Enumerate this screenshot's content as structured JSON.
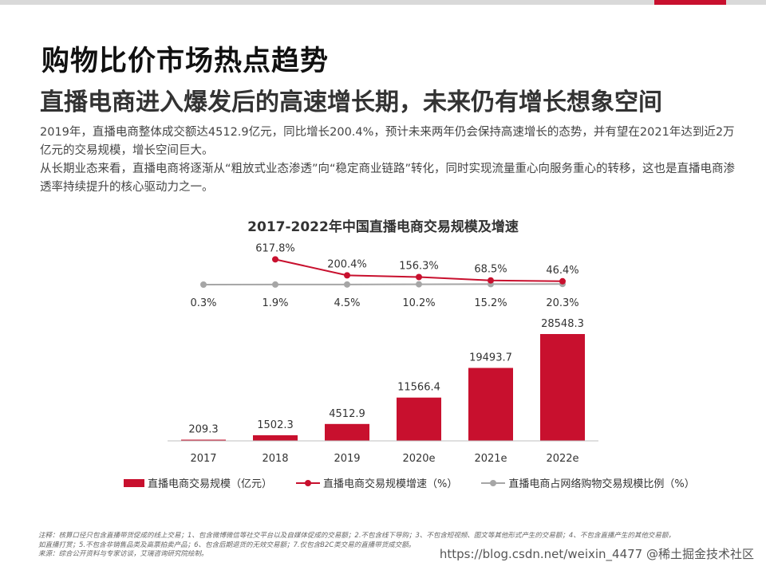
{
  "header": {
    "title": "购物比价市场热点趋势",
    "subtitle": "直播电商进入爆发后的高速增长期，未来仍有增长想象空间"
  },
  "intro": {
    "p1": "2019年，直播电商整体成交额达4512.9亿元，同比增长200.4%，预计未来两年仍会保持高速增长的态势，并有望在2021年达到近2万亿元的交易规模，增长空间巨大。",
    "p2": "从长期业态来看，直播电商将逐渐从“粗放式业态渗透”向“稳定商业链路”转化，同时实现流量重心向服务重心的转移，这也是直播电商渗透率持续提升的核心驱动力之一。"
  },
  "chart_data": {
    "type": "bar",
    "title": "2017-2022年中国直播电商交易规模及增速",
    "categories": [
      "2017",
      "2018",
      "2019",
      "2020e",
      "2021e",
      "2022e"
    ],
    "series": [
      {
        "name": "直播电商交易规模（亿元）",
        "type": "bar",
        "values": [
          209.3,
          1502.3,
          4512.9,
          11566.4,
          19493.7,
          28548.3
        ],
        "labels": [
          "209.3",
          "1502.3",
          "4512.9",
          "11566.4",
          "19493.7",
          "28548.3"
        ]
      },
      {
        "name": "直播电商交易规模增速（%）",
        "type": "line",
        "values": [
          null,
          617.8,
          200.4,
          156.3,
          68.5,
          46.4
        ],
        "labels": [
          "",
          "617.8%",
          "200.4%",
          "156.3%",
          "68.5%",
          "46.4%"
        ]
      },
      {
        "name": "直播电商占网络购物交易规模比例（%）",
        "type": "line",
        "values": [
          0.3,
          1.9,
          4.5,
          10.2,
          15.2,
          20.3
        ],
        "labels": [
          "0.3%",
          "1.9%",
          "4.5%",
          "10.2%",
          "15.2%",
          "20.3%"
        ]
      }
    ],
    "colors": {
      "bar": "#c8102e",
      "growth": "#c8102e",
      "share": "#a6a6a6",
      "axis": "#bfbfbf"
    }
  },
  "legend": {
    "bar": "直播电商交易规模（亿元）",
    "growth": "直播电商交易规模增速（%）",
    "share": "直播电商占网络购物交易规模比例（%）"
  },
  "footnote": {
    "line1": "注释：核算口径只包含直播带货促成的线上交易；1、包含微博微信等社交平台以及自媒体促成的交易额；2.不包含线下导购；3、不包含短视频、图文等其他形式产生的交易额；4、不包含直播产生的其他交易额，",
    "line2": "如直播打赏；5.不包含非销售品类及高票拍卖产品；6、包含后期退货的无效交易额；7.仅包含B2C类交易的直播带货成交额。",
    "line3": "来源：综合公开资料与专家访谈，艾瑞咨询研究院绘制。"
  },
  "watermark": "https://blog.csdn.net/weixin_4477 @稀土掘金技术社区"
}
